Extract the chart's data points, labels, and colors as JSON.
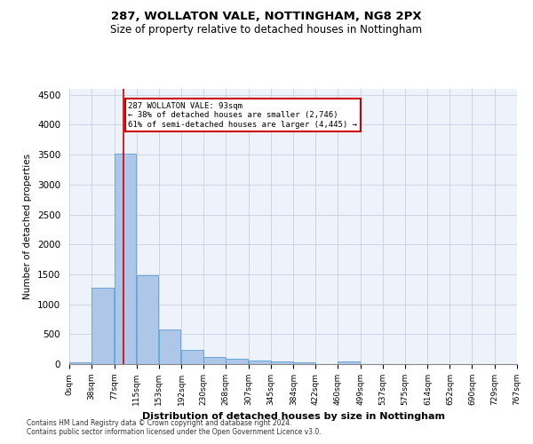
{
  "title1": "287, WOLLATON VALE, NOTTINGHAM, NG8 2PX",
  "title2": "Size of property relative to detached houses in Nottingham",
  "xlabel": "Distribution of detached houses by size in Nottingham",
  "ylabel": "Number of detached properties",
  "bar_color": "#aec6e8",
  "bar_edge_color": "#5a9fd4",
  "grid_color": "#c8d0e0",
  "background_color": "#eef2fa",
  "annotation_box_color": "#cc0000",
  "property_line_color": "#cc0000",
  "property_value": 93,
  "annotation_text_line1": "287 WOLLATON VALE: 93sqm",
  "annotation_text_line2": "← 38% of detached houses are smaller (2,746)",
  "annotation_text_line3": "61% of semi-detached houses are larger (4,445) →",
  "bin_labels": [
    "0sqm",
    "38sqm",
    "77sqm",
    "115sqm",
    "153sqm",
    "192sqm",
    "230sqm",
    "268sqm",
    "307sqm",
    "345sqm",
    "384sqm",
    "422sqm",
    "460sqm",
    "499sqm",
    "537sqm",
    "575sqm",
    "614sqm",
    "652sqm",
    "690sqm",
    "729sqm",
    "767sqm"
  ],
  "bin_edges": [
    0,
    38,
    77,
    115,
    153,
    192,
    230,
    268,
    307,
    345,
    384,
    422,
    460,
    499,
    537,
    575,
    614,
    652,
    690,
    729,
    767
  ],
  "bar_heights": [
    35,
    1275,
    3510,
    1480,
    580,
    240,
    115,
    85,
    55,
    40,
    30,
    0,
    50,
    0,
    0,
    0,
    0,
    0,
    0,
    0
  ],
  "ylim": [
    0,
    4600
  ],
  "yticks": [
    0,
    500,
    1000,
    1500,
    2000,
    2500,
    3000,
    3500,
    4000,
    4500
  ],
  "footnote1": "Contains HM Land Registry data © Crown copyright and database right 2024.",
  "footnote2": "Contains public sector information licensed under the Open Government Licence v3.0."
}
